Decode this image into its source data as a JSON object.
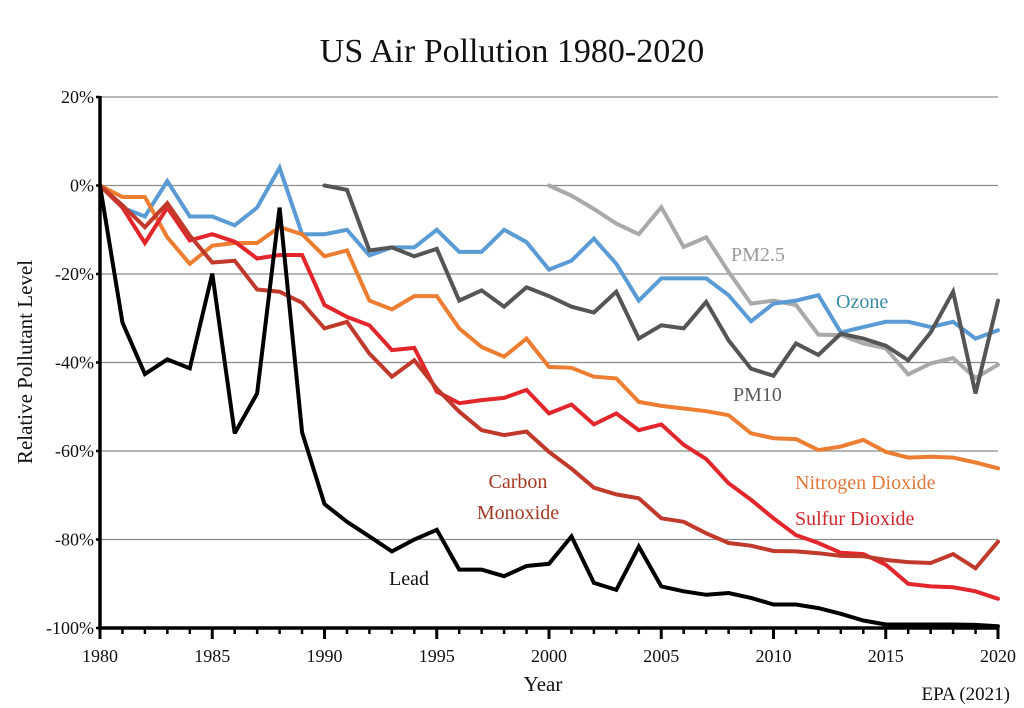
{
  "chart_data": {
    "type": "line",
    "title": "US Air Pollution 1980-2020",
    "xlabel": "Year",
    "ylabel": "Relative Pollutant Level",
    "source": "EPA (2021)",
    "xlim": [
      1980,
      2020
    ],
    "ylim": [
      -100,
      20
    ],
    "grid": true,
    "x_ticks": [
      1980,
      1985,
      1990,
      1995,
      2000,
      2005,
      2010,
      2015,
      2020
    ],
    "x_tick_labels": [
      "1980",
      "1985",
      "1990",
      "1995",
      "2000",
      "2005",
      "2010",
      "2015",
      "2020"
    ],
    "y_ticks": [
      20,
      0,
      -20,
      -40,
      -60,
      -80,
      -100
    ],
    "y_tick_labels": [
      "20%",
      "0%",
      "-20%",
      "-40%",
      "-60%",
      "-80%",
      "-100%"
    ],
    "legend": "inline-labels",
    "series": [
      {
        "name": "PM2.5",
        "label": "PM2.5",
        "color": "#a9a9a9",
        "label_color": "#9a9a9a",
        "start_year": 2000,
        "values": [
          0,
          -2.3,
          -5.3,
          -8.6,
          -11,
          -4.9,
          -13.9,
          -11.7,
          -19.5,
          -26.7,
          -26,
          -27,
          -33.7,
          -33.8,
          -35.7,
          -36.8,
          -42.7,
          -40.2,
          -39,
          -43.5,
          -40.5
        ]
      },
      {
        "name": "Ozone",
        "label": "Ozone",
        "color": "#5b9bd5",
        "label_color": "#3a8ba5",
        "start_year": 1980,
        "values": [
          0,
          -5,
          -7,
          1,
          -7,
          -7,
          -9,
          -5,
          4,
          -11,
          -11,
          -10,
          -15.8,
          -14,
          -14,
          -10,
          -15,
          -15,
          -10,
          -12.8,
          -19,
          -17,
          -12,
          -17.7,
          -26,
          -21,
          -21,
          -21,
          -24.8,
          -30.7,
          -26.7,
          -26,
          -24.8,
          -33.2,
          -32,
          -30.8,
          -30.8,
          -32,
          -30.8,
          -34.6,
          -32.7
        ]
      },
      {
        "name": "PM10",
        "label": "PM10",
        "color": "#555555",
        "label_color": "#5a5a5a",
        "start_year": 1990,
        "values": [
          0,
          -1,
          -14.7,
          -14,
          -16,
          -14.3,
          -26,
          -23.7,
          -27.4,
          -23,
          -25,
          -27.4,
          -28.7,
          -24,
          -34.6,
          -31.6,
          -32.3,
          -26.3,
          -35,
          -41.4,
          -43,
          -35.7,
          -38.3,
          -33.5,
          -34.6,
          -36.2,
          -39.5,
          -33.2,
          -24,
          -47,
          -26
        ]
      },
      {
        "name": "Nitrogen Dioxide",
        "label": "Nitrogen Dioxide",
        "color": "#ed7d31",
        "label_color": "#e0773a",
        "start_year": 1980,
        "values": [
          0,
          -2.6,
          -2.6,
          -11.7,
          -17.7,
          -13.6,
          -13,
          -13,
          -9.4,
          -11,
          -16,
          -14.7,
          -26,
          -28,
          -25,
          -25,
          -32.3,
          -36.5,
          -38.7,
          -34.6,
          -41,
          -41.2,
          -43.2,
          -43.6,
          -48.9,
          -49.8,
          -50.4,
          -51,
          -51.9,
          -56,
          -57.1,
          -57.3,
          -59.8,
          -59,
          -57.5,
          -60.2,
          -61.5,
          -61.3,
          -61.5,
          -62.6,
          -63.9
        ]
      },
      {
        "name": "Sulfur Dioxide",
        "label": "Sulfur Dioxide",
        "color": "#e3262b",
        "label_color": "#d2262c",
        "start_year": 1980,
        "values": [
          0,
          -5,
          -13,
          -5,
          -12.4,
          -11,
          -12.7,
          -16.5,
          -15.7,
          -15.7,
          -27,
          -29.7,
          -31.6,
          -37.2,
          -36.7,
          -46.6,
          -49.2,
          -48.5,
          -48,
          -46.2,
          -51.5,
          -49.5,
          -54,
          -51.5,
          -55.3,
          -54,
          -58.6,
          -61.8,
          -67.3,
          -71,
          -75.2,
          -79,
          -80.8,
          -83,
          -83.3,
          -85.7,
          -90,
          -90.6,
          -90.8,
          -91.7,
          -93.4
        ]
      },
      {
        "name": "Carbon Monoxide",
        "label": "Carbon Monoxide",
        "label_lines": [
          "Carbon",
          "Monoxide"
        ],
        "color": "#c0392b",
        "label_color": "#a33a22",
        "start_year": 1980,
        "values": [
          0,
          -4.5,
          -9.4,
          -4,
          -11.3,
          -17.4,
          -17,
          -23.5,
          -24,
          -26.5,
          -32.3,
          -30.8,
          -38,
          -43.2,
          -39.5,
          -45.9,
          -51.1,
          -55.3,
          -56.4,
          -55.6,
          -60.2,
          -64,
          -68.3,
          -69.8,
          -70.7,
          -75.2,
          -76,
          -78.6,
          -80.8,
          -81.4,
          -82.6,
          -82.7,
          -83.1,
          -83.7,
          -83.8,
          -84.6,
          -85.1,
          -85.3,
          -83.3,
          -86.5,
          -80.5
        ]
      },
      {
        "name": "Lead",
        "label": "Lead",
        "color": "#000000",
        "label_color": "#111111",
        "start_year": 1980,
        "values": [
          0,
          -31,
          -42.6,
          -39.3,
          -41.3,
          -19.9,
          -56,
          -47,
          -5,
          -55.8,
          -72,
          -76,
          -79.3,
          -82.7,
          -80,
          -77.8,
          -86.8,
          -86.8,
          -88.3,
          -86,
          -85.5,
          -79.3,
          -89.8,
          -91.4,
          -81.6,
          -90.6,
          -91.7,
          -92.5,
          -92.1,
          -93.2,
          -94.7,
          -94.7,
          -95.5,
          -96.8,
          -98.3,
          -99.2,
          -99.2,
          -99.2,
          -99.2,
          -99.3,
          -99.6
        ]
      }
    ]
  }
}
